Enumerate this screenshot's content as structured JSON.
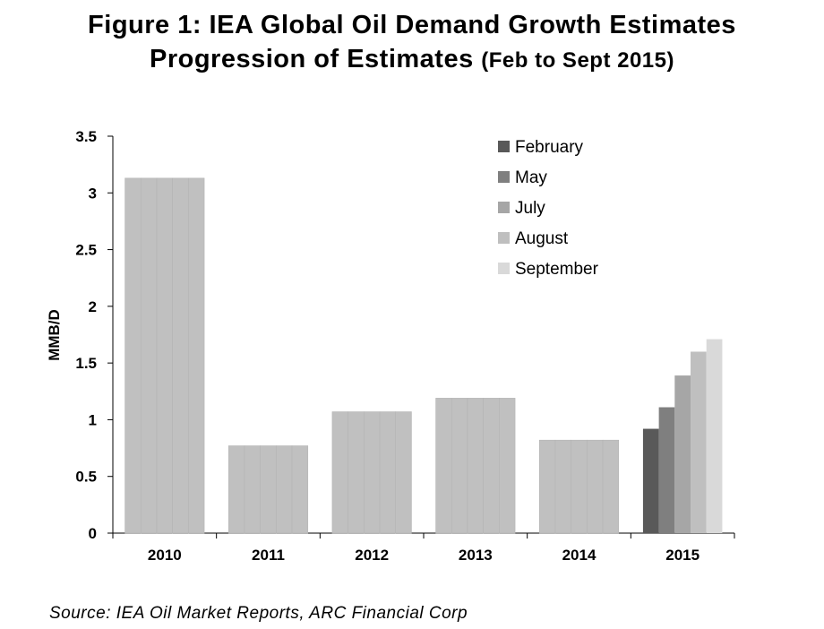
{
  "title": {
    "line1": "Figure 1: IEA Global Oil Demand Growth Estimates",
    "line2_main": "Progression of Estimates ",
    "line2_paren": "(Feb to Sept 2015)"
  },
  "source": "Source: IEA Oil Market Reports, ARC Financial Corp",
  "chart_data": {
    "type": "bar",
    "categories": [
      "2010",
      "2011",
      "2012",
      "2013",
      "2014",
      "2015"
    ],
    "series": [
      {
        "name": "February",
        "color": "#595959",
        "values": [
          3.13,
          0.77,
          1.07,
          1.19,
          0.82,
          0.92
        ]
      },
      {
        "name": "May",
        "color": "#7f7f7f",
        "values": [
          3.13,
          0.77,
          1.07,
          1.19,
          0.82,
          1.11
        ]
      },
      {
        "name": "July",
        "color": "#a6a6a6",
        "values": [
          3.13,
          0.77,
          1.07,
          1.19,
          0.82,
          1.39
        ]
      },
      {
        "name": "August",
        "color": "#bfbfbf",
        "values": [
          3.13,
          0.77,
          1.07,
          1.19,
          0.82,
          1.6
        ]
      },
      {
        "name": "September",
        "color": "#d9d9d9",
        "values": [
          3.13,
          0.77,
          1.07,
          1.19,
          0.82,
          1.71
        ]
      }
    ],
    "historical_bar_color": "#c0c0c0",
    "ylabel": "MMB/D",
    "xlabel": "",
    "ylim": [
      0,
      3.5
    ],
    "yticks": [
      "0",
      "0.5",
      "1",
      "1.5",
      "2",
      "2.5",
      "3",
      "3.5"
    ],
    "grid": false,
    "legend_position": "top-right"
  }
}
